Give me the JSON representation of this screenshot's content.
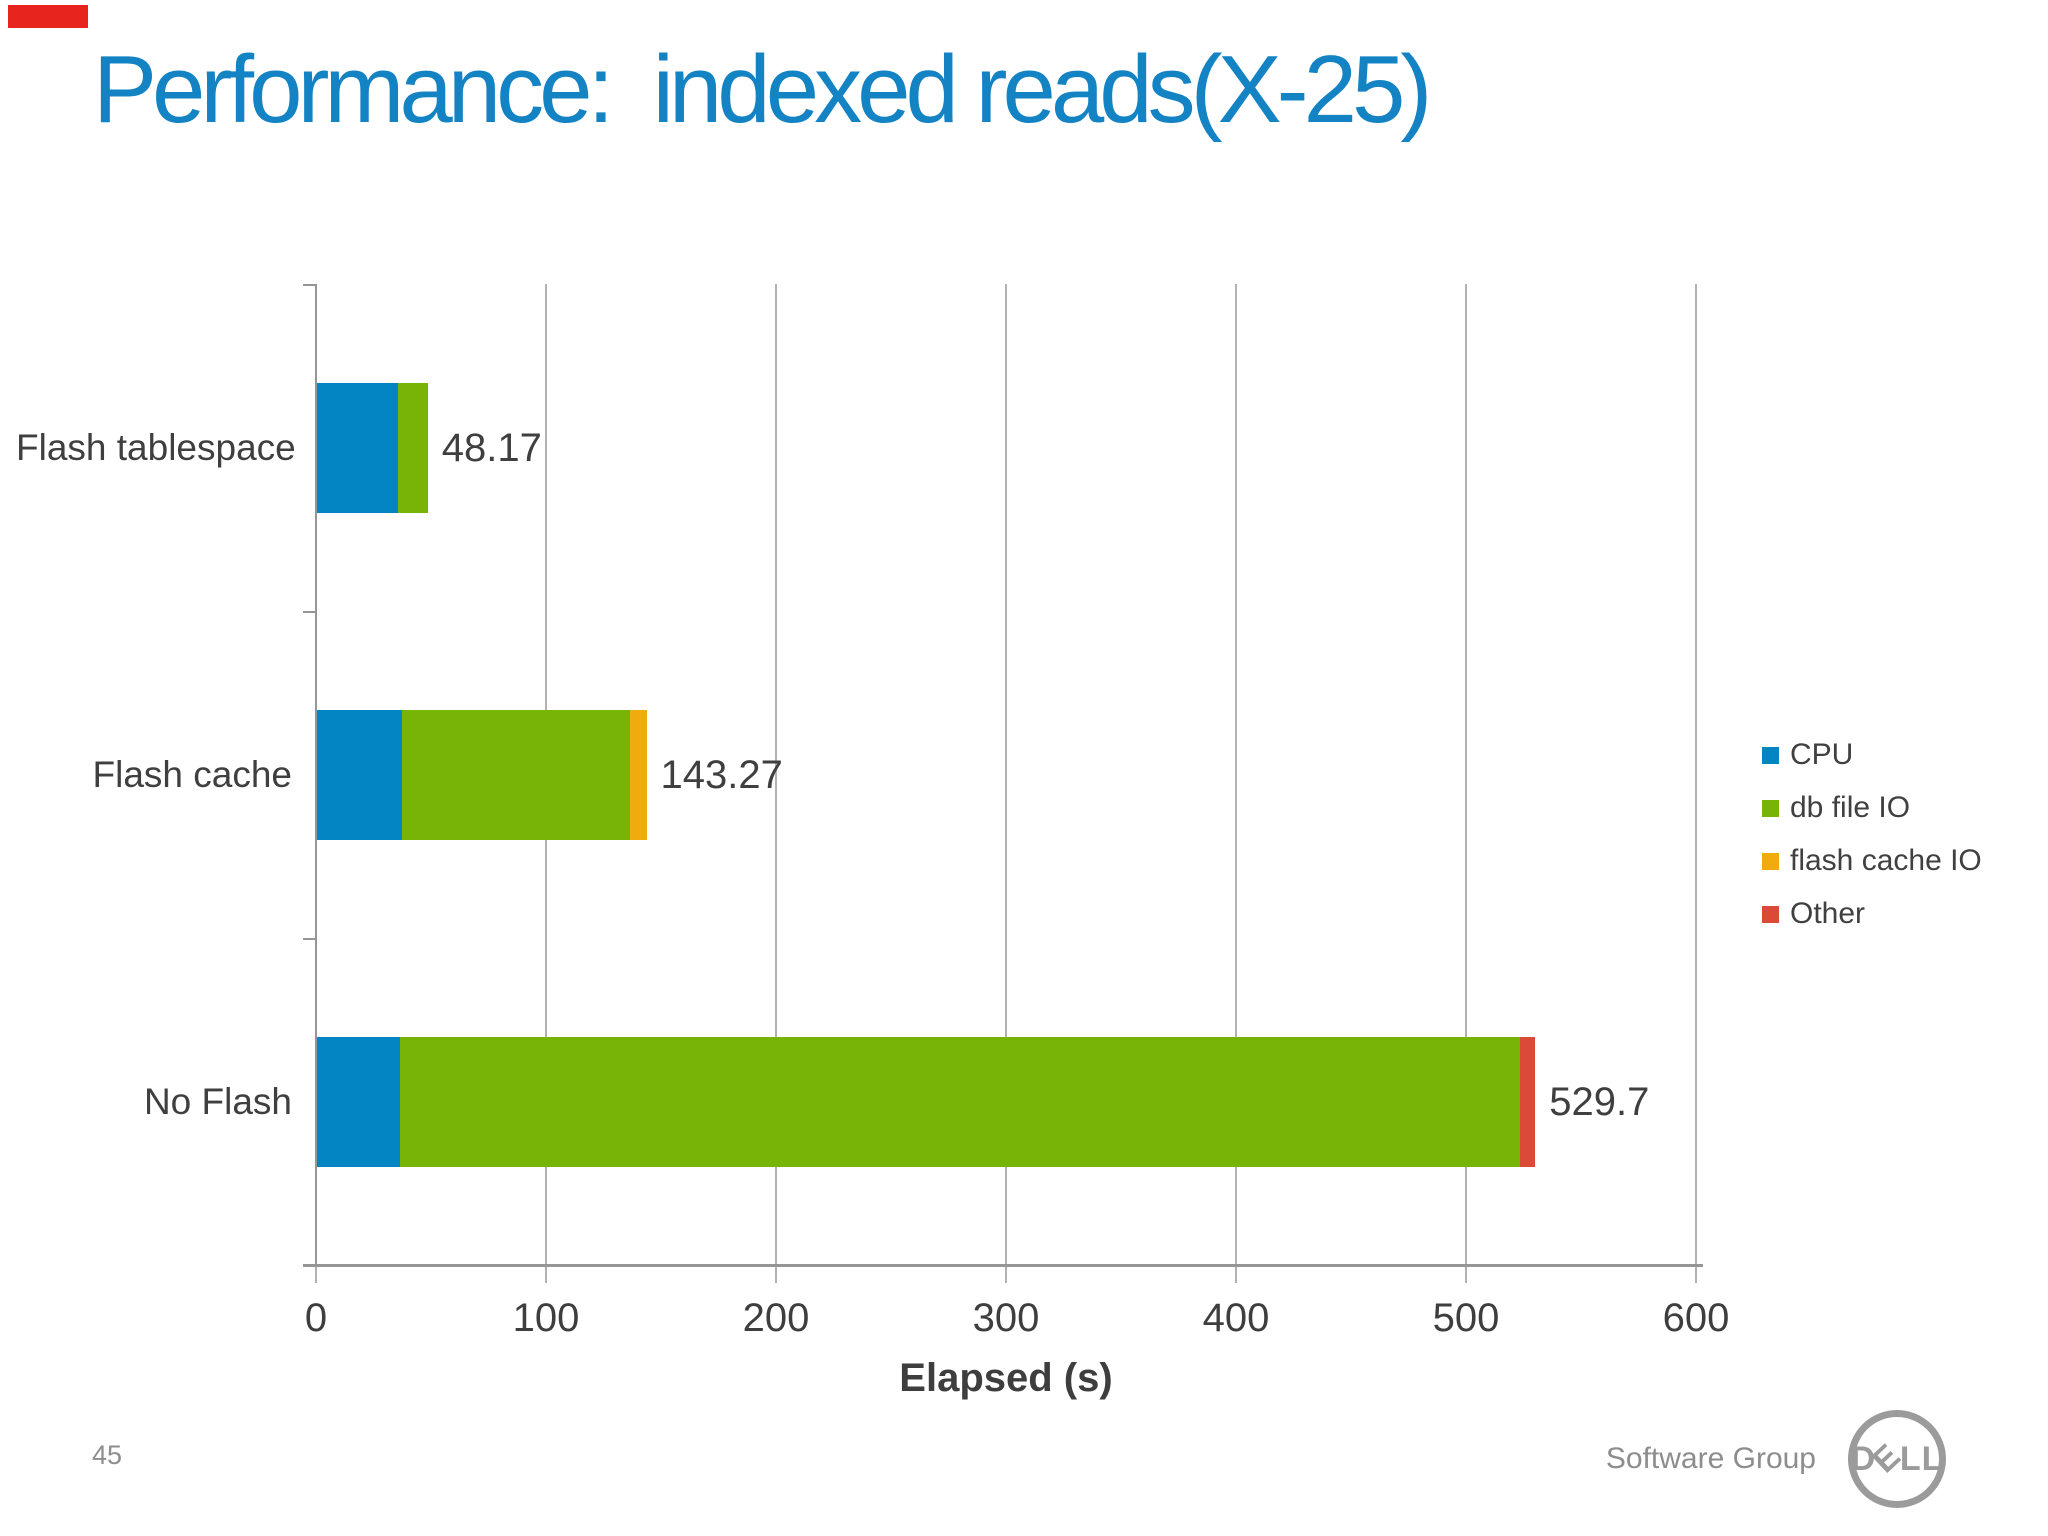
{
  "page": {
    "title": "Performance:  indexed reads(X-25)",
    "title_color": "#1383c4",
    "marker_color": "#e8241f",
    "page_number": "45",
    "footer_text": "Software Group",
    "logo_letters": [
      "D",
      "E",
      "L",
      "L"
    ]
  },
  "chart_data": {
    "type": "bar",
    "orientation": "horizontal",
    "stacked": true,
    "title": "",
    "xlabel": "Elapsed (s)",
    "ylabel": "",
    "xlim": [
      0,
      600
    ],
    "xticks": [
      0,
      100,
      200,
      300,
      400,
      500,
      600
    ],
    "grid": true,
    "legend_position": "right",
    "categories": [
      "Flash tablespace",
      "Flash cache",
      "No Flash"
    ],
    "series": [
      {
        "name": "CPU",
        "color": "#0485c3",
        "values": [
          35,
          37,
          36
        ]
      },
      {
        "name": "db file IO",
        "color": "#77b405",
        "values": [
          13.17,
          99,
          487
        ]
      },
      {
        "name": "flash cache IO",
        "color": "#f0ab0c",
        "values": [
          0,
          7.27,
          0
        ]
      },
      {
        "name": "Other",
        "color": "#db4a37",
        "values": [
          0,
          0,
          6.7
        ]
      }
    ],
    "totals": [
      48.17,
      143.27,
      529.7
    ],
    "total_labels": [
      "48.17",
      "143.27",
      "529.7"
    ]
  }
}
